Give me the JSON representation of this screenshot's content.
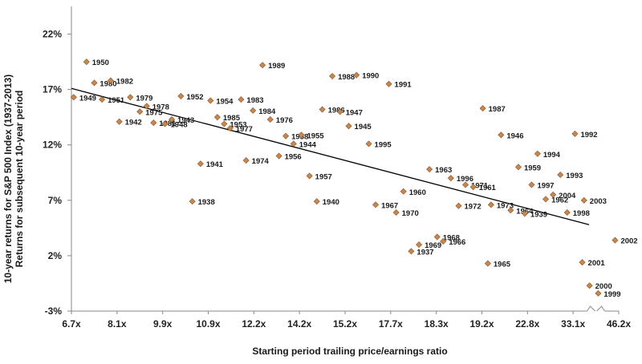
{
  "chart_data": {
    "type": "scatter",
    "title": "",
    "xlabel": "Starting period trailing price/earnings ratio",
    "ylabel_lines": [
      "10-year returns for S&P 500 Index (1937-2013)",
      "Returns for subsequent 10-year period"
    ],
    "x_tick_labels": [
      "6.7x",
      "8.1x",
      "9.9x",
      "10.9x",
      "12.2x",
      "14.2x",
      "15.2x",
      "17.7x",
      "18.3x",
      "19.2x",
      "22.8x",
      "33.1x",
      "46.2x"
    ],
    "x_axis_note": "x-axis positions are percentiles of the P/E distribution (0 = 6.7x, 12 = 46.2x); axis break between 33.1x and 46.2x",
    "y_tick_labels": [
      "22%",
      "17%",
      "12%",
      "7%",
      "2%",
      "-3%"
    ],
    "y_ticks": [
      22,
      17,
      12,
      7,
      2,
      -3
    ],
    "ylim": [
      -3,
      24.5
    ],
    "xlim": [
      0,
      12
    ],
    "points": [
      {
        "x": 0.05,
        "y": 16.3,
        "label": "1949"
      },
      {
        "x": 0.33,
        "y": 19.5,
        "label": "1950"
      },
      {
        "x": 0.5,
        "y": 17.6,
        "label": "1980"
      },
      {
        "x": 0.67,
        "y": 16.1,
        "label": "1951"
      },
      {
        "x": 0.86,
        "y": 17.8,
        "label": "1982"
      },
      {
        "x": 1.05,
        "y": 14.1,
        "label": "1942"
      },
      {
        "x": 1.29,
        "y": 16.3,
        "label": "1979"
      },
      {
        "x": 1.5,
        "y": 15.0,
        "label": "1975"
      },
      {
        "x": 1.65,
        "y": 15.5,
        "label": "1978"
      },
      {
        "x": 1.8,
        "y": 14.0,
        "label": "1981"
      },
      {
        "x": 2.05,
        "y": 13.9,
        "label": "1948"
      },
      {
        "x": 2.2,
        "y": 14.3,
        "label": "1943"
      },
      {
        "x": 2.4,
        "y": 16.4,
        "label": "1952"
      },
      {
        "x": 2.65,
        "y": 6.9,
        "label": "1938"
      },
      {
        "x": 2.83,
        "y": 10.3,
        "label": "1941"
      },
      {
        "x": 3.05,
        "y": 16.0,
        "label": "1954"
      },
      {
        "x": 3.2,
        "y": 14.5,
        "label": "1985"
      },
      {
        "x": 3.35,
        "y": 13.9,
        "label": "1953"
      },
      {
        "x": 3.48,
        "y": 13.5,
        "label": "1977"
      },
      {
        "x": 3.72,
        "y": 16.1,
        "label": "1983"
      },
      {
        "x": 3.83,
        "y": 10.6,
        "label": "1974"
      },
      {
        "x": 3.98,
        "y": 15.1,
        "label": "1984"
      },
      {
        "x": 4.19,
        "y": 19.2,
        "label": "1989"
      },
      {
        "x": 4.36,
        "y": 14.3,
        "label": "1976"
      },
      {
        "x": 4.55,
        "y": 11.0,
        "label": "1956"
      },
      {
        "x": 4.7,
        "y": 12.8,
        "label": "1958"
      },
      {
        "x": 4.87,
        "y": 12.1,
        "label": "1944"
      },
      {
        "x": 5.04,
        "y": 12.9,
        "label": "1955"
      },
      {
        "x": 5.22,
        "y": 9.2,
        "label": "1957"
      },
      {
        "x": 5.38,
        "y": 6.9,
        "label": "1940"
      },
      {
        "x": 5.5,
        "y": 15.2,
        "label": "1986"
      },
      {
        "x": 5.72,
        "y": 18.2,
        "label": "1988"
      },
      {
        "x": 5.89,
        "y": 15.0,
        "label": "1947"
      },
      {
        "x": 6.08,
        "y": 13.7,
        "label": "1945"
      },
      {
        "x": 6.25,
        "y": 18.3,
        "label": "1990"
      },
      {
        "x": 6.52,
        "y": 12.1,
        "label": "1995"
      },
      {
        "x": 6.67,
        "y": 6.6,
        "label": "1967"
      },
      {
        "x": 6.96,
        "y": 17.5,
        "label": "1991"
      },
      {
        "x": 7.12,
        "y": 5.9,
        "label": "1970"
      },
      {
        "x": 7.28,
        "y": 7.8,
        "label": "1960"
      },
      {
        "x": 7.45,
        "y": 2.4,
        "label": "1937"
      },
      {
        "x": 7.62,
        "y": 3.0,
        "label": "1969"
      },
      {
        "x": 7.85,
        "y": 9.8,
        "label": "1963"
      },
      {
        "x": 8.02,
        "y": 3.7,
        "label": "1968"
      },
      {
        "x": 8.15,
        "y": 3.3,
        "label": "1966"
      },
      {
        "x": 8.32,
        "y": 9.0,
        "label": "1996"
      },
      {
        "x": 8.49,
        "y": 6.5,
        "label": "1972"
      },
      {
        "x": 8.64,
        "y": 8.4,
        "label": "1971"
      },
      {
        "x": 8.81,
        "y": 8.2,
        "label": "1961"
      },
      {
        "x": 9.02,
        "y": 15.3,
        "label": "1987"
      },
      {
        "x": 9.13,
        "y": 1.3,
        "label": "1965"
      },
      {
        "x": 9.2,
        "y": 6.6,
        "label": "1973"
      },
      {
        "x": 9.42,
        "y": 12.9,
        "label": "1946"
      },
      {
        "x": 9.63,
        "y": 6.1,
        "label": "1964"
      },
      {
        "x": 9.8,
        "y": 10.0,
        "label": "1959"
      },
      {
        "x": 9.94,
        "y": 5.8,
        "label": "1939"
      },
      {
        "x": 10.09,
        "y": 8.4,
        "label": "1997"
      },
      {
        "x": 10.22,
        "y": 11.2,
        "label": "1994"
      },
      {
        "x": 10.4,
        "y": 7.1,
        "label": "1962"
      },
      {
        "x": 10.56,
        "y": 7.5,
        "label": "2004"
      },
      {
        "x": 10.72,
        "y": 9.3,
        "label": "1993"
      },
      {
        "x": 10.87,
        "y": 5.9,
        "label": "1998"
      },
      {
        "x": 11.04,
        "y": 13.0,
        "label": "1992"
      },
      {
        "x": 11.2,
        "y": 1.4,
        "label": "2001"
      },
      {
        "x": 11.24,
        "y": 7.0,
        "label": "2003"
      },
      {
        "x": 11.36,
        "y": -0.7,
        "label": "2000"
      },
      {
        "x": 11.55,
        "y": -1.4,
        "label": "1999"
      },
      {
        "x": 11.92,
        "y": 3.4,
        "label": "2002"
      }
    ],
    "trendline": {
      "x": [
        0.0,
        11.35
      ],
      "y": [
        17.1,
        4.8
      ]
    },
    "colors": {
      "marker": "#c8874e",
      "marker_edge": "#8a5528",
      "trendline": "#000000",
      "text": "#1a1a1a"
    }
  }
}
